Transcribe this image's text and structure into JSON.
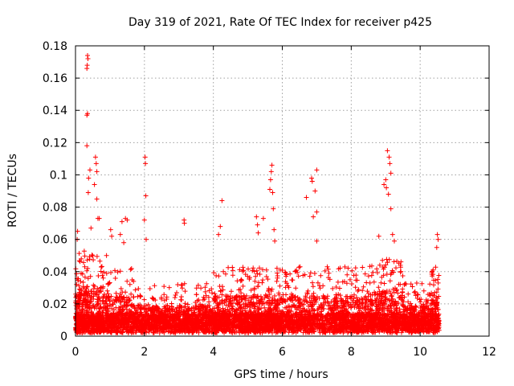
{
  "chart_data": {
    "type": "scatter",
    "title": "Day 319 of 2021, Rate Of TEC Index for receiver p425",
    "xlabel": "GPS time / hours",
    "ylabel": "ROTI / TECUs",
    "xlim": [
      0,
      12
    ],
    "ylim": [
      0,
      0.18
    ],
    "x_ticks": [
      "0",
      "2",
      "4",
      "6",
      "8",
      "10",
      "12"
    ],
    "y_ticks": [
      "0",
      "0.02",
      "0.04",
      "0.06",
      "0.08",
      "0.1",
      "0.12",
      "0.14",
      "0.16",
      "0.18"
    ],
    "grid": true,
    "marker": "+",
    "series_color": "#ff0000",
    "series": [
      {
        "name": "ROTI",
        "notable_points": [
          {
            "x": 0.35,
            "y": 0.174
          },
          {
            "x": 0.36,
            "y": 0.172
          },
          {
            "x": 0.34,
            "y": 0.168
          },
          {
            "x": 0.33,
            "y": 0.166
          },
          {
            "x": 0.35,
            "y": 0.138
          },
          {
            "x": 0.33,
            "y": 0.137
          },
          {
            "x": 0.33,
            "y": 0.118
          },
          {
            "x": 0.58,
            "y": 0.111
          },
          {
            "x": 0.6,
            "y": 0.107
          },
          {
            "x": 0.42,
            "y": 0.103
          },
          {
            "x": 0.62,
            "y": 0.102
          },
          {
            "x": 0.38,
            "y": 0.098
          },
          {
            "x": 0.55,
            "y": 0.094
          },
          {
            "x": 0.37,
            "y": 0.089
          },
          {
            "x": 0.62,
            "y": 0.085
          },
          {
            "x": 0.65,
            "y": 0.073
          },
          {
            "x": 0.69,
            "y": 0.073
          },
          {
            "x": 0.45,
            "y": 0.067
          },
          {
            "x": 0.06,
            "y": 0.065
          },
          {
            "x": 0.05,
            "y": 0.06
          },
          {
            "x": 2.02,
            "y": 0.111
          },
          {
            "x": 2.03,
            "y": 0.107
          },
          {
            "x": 2.04,
            "y": 0.087
          },
          {
            "x": 2.0,
            "y": 0.072
          },
          {
            "x": 2.05,
            "y": 0.06
          },
          {
            "x": 3.15,
            "y": 0.072
          },
          {
            "x": 3.16,
            "y": 0.07
          },
          {
            "x": 4.25,
            "y": 0.084
          },
          {
            "x": 4.2,
            "y": 0.068
          },
          {
            "x": 4.15,
            "y": 0.063
          },
          {
            "x": 5.7,
            "y": 0.106
          },
          {
            "x": 5.68,
            "y": 0.102
          },
          {
            "x": 5.66,
            "y": 0.097
          },
          {
            "x": 5.64,
            "y": 0.091
          },
          {
            "x": 5.72,
            "y": 0.089
          },
          {
            "x": 5.74,
            "y": 0.079
          },
          {
            "x": 5.76,
            "y": 0.066
          },
          {
            "x": 5.78,
            "y": 0.059
          },
          {
            "x": 5.25,
            "y": 0.074
          },
          {
            "x": 5.28,
            "y": 0.069
          },
          {
            "x": 5.3,
            "y": 0.064
          },
          {
            "x": 5.45,
            "y": 0.073
          },
          {
            "x": 6.85,
            "y": 0.098
          },
          {
            "x": 6.87,
            "y": 0.096
          },
          {
            "x": 7.0,
            "y": 0.103
          },
          {
            "x": 6.7,
            "y": 0.086
          },
          {
            "x": 6.95,
            "y": 0.09
          },
          {
            "x": 6.9,
            "y": 0.074
          },
          {
            "x": 7.0,
            "y": 0.077
          },
          {
            "x": 7.0,
            "y": 0.059
          },
          {
            "x": 9.05,
            "y": 0.115
          },
          {
            "x": 9.1,
            "y": 0.111
          },
          {
            "x": 9.12,
            "y": 0.107
          },
          {
            "x": 9.15,
            "y": 0.101
          },
          {
            "x": 9.0,
            "y": 0.097
          },
          {
            "x": 8.95,
            "y": 0.094
          },
          {
            "x": 9.02,
            "y": 0.092
          },
          {
            "x": 9.08,
            "y": 0.088
          },
          {
            "x": 9.15,
            "y": 0.079
          },
          {
            "x": 8.8,
            "y": 0.062
          },
          {
            "x": 9.2,
            "y": 0.063
          },
          {
            "x": 9.25,
            "y": 0.059
          },
          {
            "x": 10.5,
            "y": 0.063
          },
          {
            "x": 10.52,
            "y": 0.06
          },
          {
            "x": 10.48,
            "y": 0.055
          },
          {
            "x": 1.35,
            "y": 0.071
          },
          {
            "x": 1.45,
            "y": 0.073
          },
          {
            "x": 1.5,
            "y": 0.072
          },
          {
            "x": 1.3,
            "y": 0.063
          },
          {
            "x": 1.4,
            "y": 0.058
          },
          {
            "x": 1.02,
            "y": 0.066
          },
          {
            "x": 1.05,
            "y": 0.062
          },
          {
            "x": 0.9,
            "y": 0.05
          }
        ],
        "density_profile": [
          {
            "x_start": 0.0,
            "x_end": 0.1,
            "y_typical_max": 0.035,
            "points": 120
          },
          {
            "x_start": 0.1,
            "x_end": 0.8,
            "y_typical_max": 0.045,
            "points": 520
          },
          {
            "x_start": 0.8,
            "x_end": 1.7,
            "y_typical_max": 0.035,
            "points": 500
          },
          {
            "x_start": 1.7,
            "x_end": 3.0,
            "y_typical_max": 0.025,
            "points": 650
          },
          {
            "x_start": 3.0,
            "x_end": 4.0,
            "y_typical_max": 0.025,
            "points": 500
          },
          {
            "x_start": 4.0,
            "x_end": 5.0,
            "y_typical_max": 0.035,
            "points": 600
          },
          {
            "x_start": 5.0,
            "x_end": 6.0,
            "y_typical_max": 0.035,
            "points": 650
          },
          {
            "x_start": 6.0,
            "x_end": 7.5,
            "y_typical_max": 0.035,
            "points": 700
          },
          {
            "x_start": 7.5,
            "x_end": 8.5,
            "y_typical_max": 0.035,
            "points": 550
          },
          {
            "x_start": 8.5,
            "x_end": 9.5,
            "y_typical_max": 0.04,
            "points": 600
          },
          {
            "x_start": 9.5,
            "x_end": 10.3,
            "y_typical_max": 0.025,
            "points": 450
          },
          {
            "x_start": 10.3,
            "x_end": 10.55,
            "y_typical_max": 0.04,
            "points": 180
          }
        ]
      }
    ]
  }
}
